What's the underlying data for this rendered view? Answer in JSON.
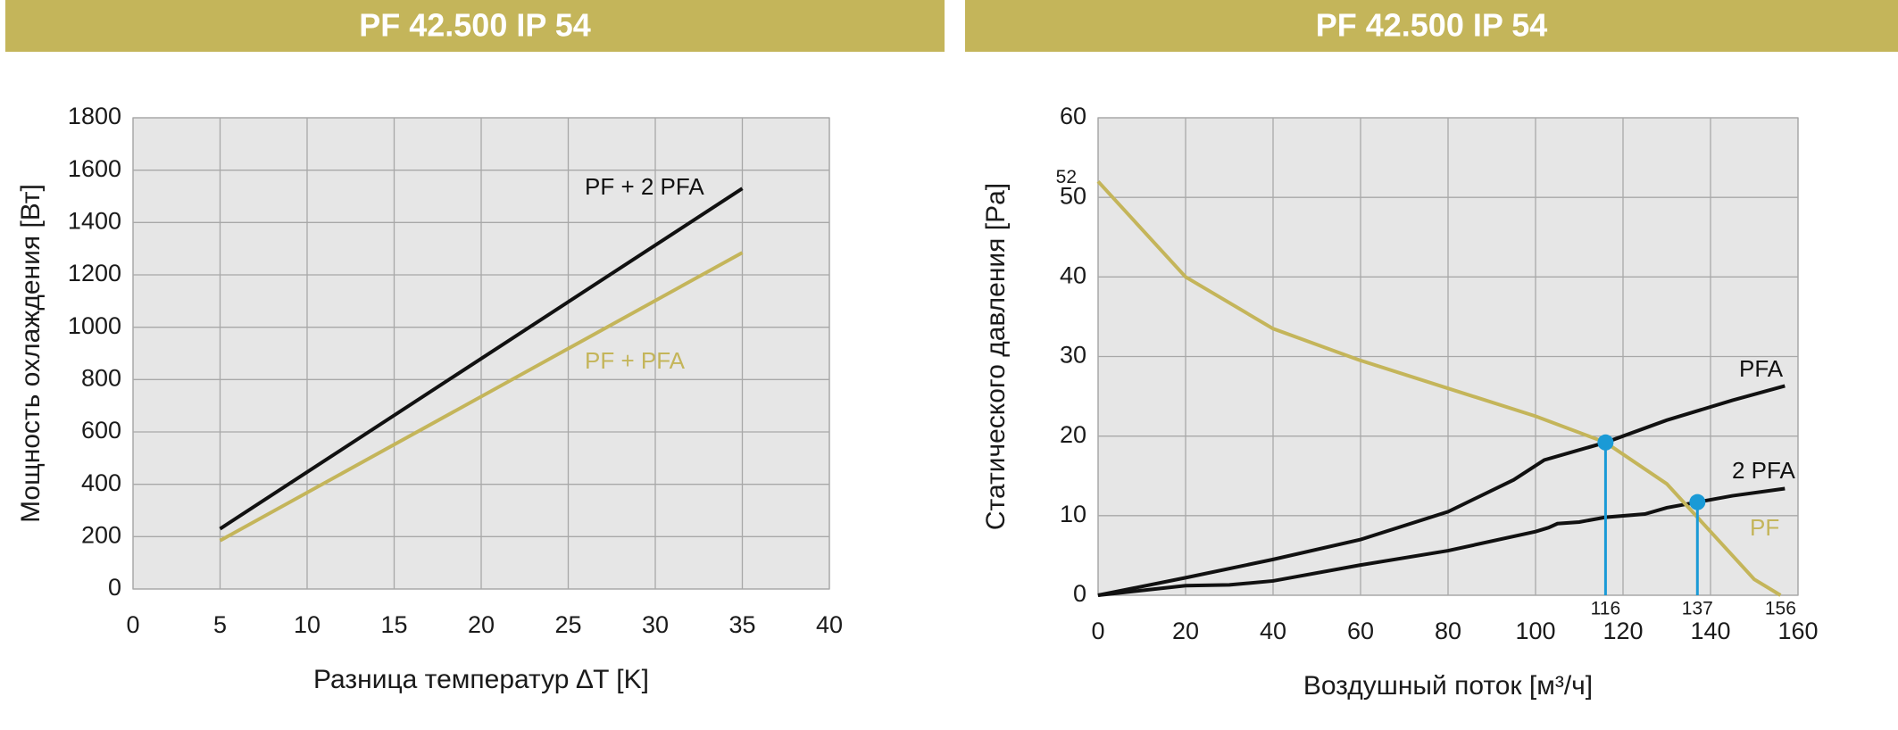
{
  "chart_data": [
    {
      "type": "line",
      "title": "PF 42.500 IP 54",
      "x_label": "Разница температур ∆T [K]",
      "y_label": "Мощность охлаждения [Вт]",
      "xlim": [
        0,
        40
      ],
      "xticks": [
        0,
        5,
        10,
        15,
        20,
        25,
        30,
        35,
        40
      ],
      "ylim": [
        0,
        1800
      ],
      "yticks": [
        0,
        200,
        400,
        600,
        800,
        1000,
        1200,
        1400,
        1600,
        1800
      ],
      "grid": true,
      "series": [
        {
          "name": "PF + 2 PFA",
          "color": "#111111",
          "x": [
            5,
            35
          ],
          "values": [
            230,
            1530
          ]
        },
        {
          "name": "PF + PFA",
          "color": "#c4b55a",
          "x": [
            5,
            35
          ],
          "values": [
            185,
            1285
          ]
        }
      ]
    },
    {
      "type": "line",
      "title": "PF 42.500 IP 54",
      "x_label": "Воздушный поток [м³/ч]",
      "y_label": "Статического давления [Pa]",
      "xlim": [
        0,
        160
      ],
      "xticks": [
        0,
        20,
        40,
        60,
        80,
        100,
        120,
        140,
        160
      ],
      "ylim": [
        0,
        60
      ],
      "yticks": [
        0,
        10,
        20,
        30,
        40,
        50,
        60
      ],
      "grid": true,
      "y_annotations": [
        52
      ],
      "x_annotations": [
        156
      ],
      "markers": [
        {
          "x": 116,
          "y": 19.2
        },
        {
          "x": 137,
          "y": 11.7
        }
      ],
      "marker_color": "#1a9ad6",
      "series": [
        {
          "name": "PFA",
          "color": "#111111",
          "x": [
            0,
            20,
            40,
            60,
            80,
            95,
            102,
            116,
            130,
            145,
            157
          ],
          "values": [
            0,
            2.2,
            4.5,
            7,
            10.5,
            14.5,
            17,
            19.2,
            22,
            24.5,
            26.3
          ]
        },
        {
          "name": "2 PFA",
          "color": "#111111",
          "x": [
            0,
            20,
            30,
            40,
            60,
            80,
            100,
            103,
            105,
            110,
            116,
            125,
            130,
            137,
            145,
            157
          ],
          "values": [
            0,
            1.2,
            1.3,
            1.8,
            3.8,
            5.6,
            8,
            8.5,
            9,
            9.2,
            9.8,
            10.2,
            11,
            11.7,
            12.5,
            13.4
          ]
        },
        {
          "name": "PF",
          "color": "#c4b55a",
          "x": [
            0,
            20,
            40,
            60,
            80,
            100,
            116,
            130,
            140,
            150,
            156
          ],
          "values": [
            52,
            40,
            33.5,
            29.5,
            26,
            22.5,
            19.2,
            14,
            8,
            2,
            0
          ]
        }
      ]
    }
  ]
}
